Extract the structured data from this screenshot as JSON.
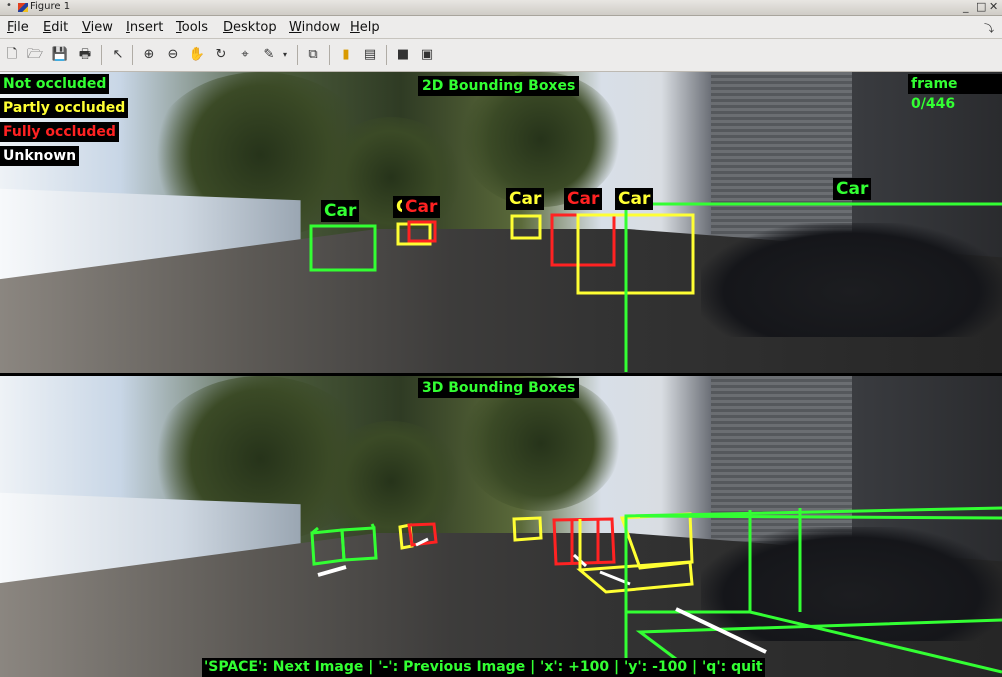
{
  "window": {
    "title": "Figure 1",
    "controls": [
      "_",
      "□",
      "✕"
    ]
  },
  "menubar": {
    "items": [
      {
        "key": "F",
        "rest": "ile"
      },
      {
        "key": "E",
        "rest": "dit"
      },
      {
        "key": "V",
        "rest": "iew"
      },
      {
        "key": "I",
        "rest": "nsert"
      },
      {
        "key": "T",
        "rest": "ools"
      },
      {
        "key": "D",
        "rest": "esktop"
      },
      {
        "key": "W",
        "rest": "indow"
      },
      {
        "key": "H",
        "rest": "elp"
      }
    ],
    "arrow": "⤵"
  },
  "toolbar": {
    "icons": [
      "new-file-icon",
      "open-folder-icon",
      "save-icon",
      "print-icon",
      "pointer-icon",
      "zoom-in-icon",
      "zoom-out-icon",
      "pan-hand-icon",
      "rotate-3d-icon",
      "data-cursor-icon",
      "brush-icon",
      "brush-dropdown-icon",
      "link-plot-icon",
      "colorbar-icon",
      "legend-icon",
      "hide-plot-tools-icon",
      "show-plot-tools-icon"
    ]
  },
  "legend": {
    "not_occluded": "Not occluded",
    "partly_occluded": "Partly occluded",
    "fully_occluded": "Fully occluded",
    "unknown": "Unknown"
  },
  "colors": {
    "green": "#33ff33",
    "yellow": "#ffff33",
    "red": "#ff2222",
    "white": "#ffffff"
  },
  "panels": {
    "top_title": "2D Bounding Boxes",
    "bottom_title": "3D Bounding Boxes",
    "frame": "frame 0/446"
  },
  "car_labels": [
    {
      "text": "Car",
      "color": "green"
    },
    {
      "text": "Car",
      "color": "yellow"
    },
    {
      "text": "Car",
      "color": "red"
    },
    {
      "text": "Car",
      "color": "yellow"
    },
    {
      "text": "Car",
      "color": "red"
    },
    {
      "text": "Car",
      "color": "yellow"
    },
    {
      "text": "Car",
      "color": "green"
    }
  ],
  "help": "'SPACE': Next Image  |  '-': Previous Image  |  'x': +100  |  'y': -100 | 'q': quit"
}
